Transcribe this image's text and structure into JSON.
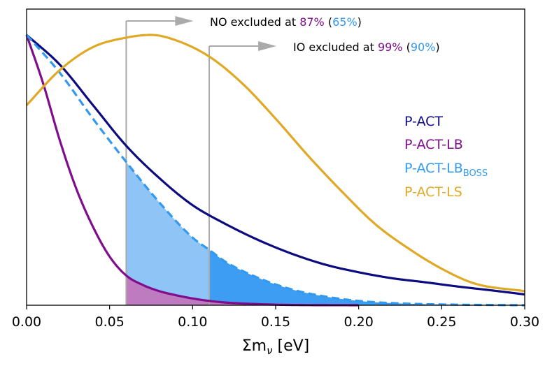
{
  "chart_data": {
    "type": "line",
    "title": "",
    "xlabel_symbol": "Σm",
    "xlabel_subscript": "ν",
    "xlabel_unit": "[eV]",
    "ylabel": "",
    "xlim": [
      0.0,
      0.3
    ],
    "ylim": [
      0.0,
      1.0
    ],
    "xticks": [
      0.0,
      0.05,
      0.1,
      0.15,
      0.2,
      0.25,
      0.3
    ],
    "xtick_labels": [
      "0.00",
      "0.05",
      "0.10",
      "0.15",
      "0.20",
      "0.25",
      "0.30"
    ],
    "legend_position": "right",
    "series": [
      {
        "name": "P-ACT",
        "color": "#0c0c80",
        "dashed": false,
        "x": [
          0.0,
          0.02,
          0.04,
          0.06,
          0.08,
          0.1,
          0.12,
          0.14,
          0.16,
          0.18,
          0.2,
          0.22,
          0.24,
          0.26,
          0.28,
          0.3
        ],
        "y": [
          1.0,
          0.89,
          0.74,
          0.59,
          0.47,
          0.37,
          0.3,
          0.24,
          0.19,
          0.15,
          0.122,
          0.1,
          0.085,
          0.069,
          0.055,
          0.04
        ]
      },
      {
        "name": "P-ACT-LB",
        "color": "#800d8c",
        "dashed": false,
        "x": [
          0.0,
          0.01,
          0.02,
          0.03,
          0.04,
          0.05,
          0.06,
          0.07,
          0.08,
          0.09,
          0.1,
          0.11,
          0.12,
          0.14,
          0.16,
          0.2
        ],
        "y": [
          1.0,
          0.82,
          0.61,
          0.43,
          0.29,
          0.18,
          0.11,
          0.075,
          0.052,
          0.037,
          0.025,
          0.016,
          0.01,
          0.004,
          0.001,
          0.0
        ]
      },
      {
        "name": "P-ACT-LB",
        "name_subscript": "BOSS",
        "color": "#3399ee",
        "dashed": true,
        "x": [
          0.0,
          0.02,
          0.04,
          0.06,
          0.08,
          0.1,
          0.11,
          0.12,
          0.14,
          0.16,
          0.18,
          0.2,
          0.22,
          0.24,
          0.26,
          0.28,
          0.3
        ],
        "y": [
          1.0,
          0.86,
          0.69,
          0.53,
          0.38,
          0.25,
          0.205,
          0.16,
          0.1,
          0.058,
          0.032,
          0.016,
          0.008,
          0.004,
          0.002,
          0.001,
          0.0
        ]
      },
      {
        "name": "P-ACT-LS",
        "color": "#e0a925",
        "dashed": false,
        "x": [
          0.0,
          0.02,
          0.04,
          0.06,
          0.075,
          0.09,
          0.11,
          0.13,
          0.15,
          0.17,
          0.19,
          0.21,
          0.23,
          0.25,
          0.27,
          0.3
        ],
        "y": [
          0.74,
          0.87,
          0.955,
          0.99,
          1.0,
          0.98,
          0.92,
          0.82,
          0.69,
          0.55,
          0.42,
          0.3,
          0.21,
          0.135,
          0.08,
          0.052
        ]
      }
    ],
    "shaded_regions": [
      {
        "series_index": 2,
        "from": 0.06,
        "to": 0.11,
        "color": "#8fc4f7"
      },
      {
        "series_index": 2,
        "from": 0.11,
        "to": 0.3,
        "color": "#3d9df2"
      },
      {
        "series_index": 1,
        "from": 0.06,
        "to": 0.3,
        "color": "#bf7bbf"
      }
    ],
    "vlines": [
      {
        "x": 0.06,
        "color": "#aaaaaa"
      },
      {
        "x": 0.11,
        "color": "#aaaaaa"
      }
    ],
    "annotations": [
      {
        "x": 0.06,
        "prefix": "NO excluded at ",
        "value_lb": "87%",
        "value_lb_color": "#800d8c",
        "value_boss": "65%",
        "value_boss_color": "#3399ee",
        "open": " (",
        "close": ")"
      },
      {
        "x": 0.11,
        "prefix": "IO excluded at ",
        "value_lb": "99%",
        "value_lb_color": "#800d8c",
        "value_boss": "90%",
        "value_boss_color": "#3399ee",
        "open": " (",
        "close": ")"
      }
    ]
  }
}
